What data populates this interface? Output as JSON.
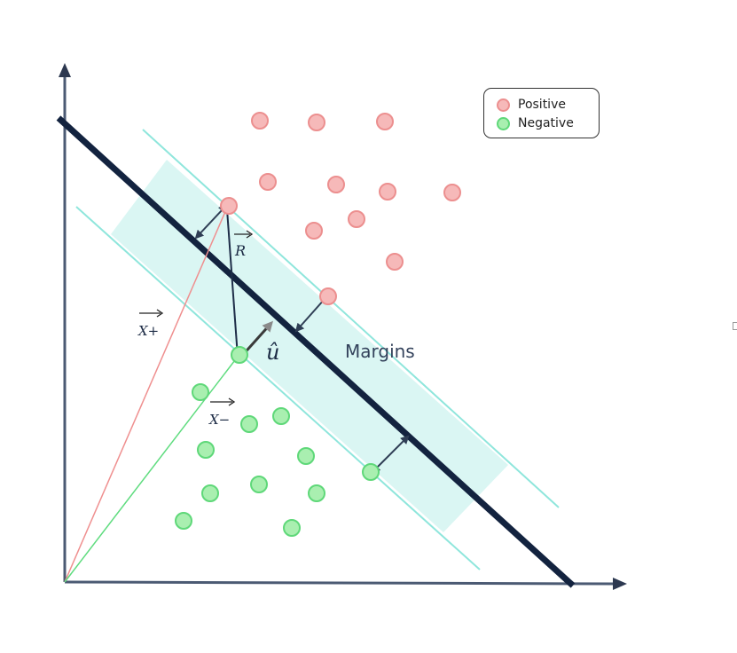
{
  "legend": {
    "positive_label": "Positive",
    "negative_label": "Negative"
  },
  "labels": {
    "r_vector": "R",
    "x_plus": "X+",
    "x_minus": "X−",
    "u_hat": "û",
    "margins": "Margins"
  },
  "colors": {
    "positive_fill": "#f6b9b9",
    "positive_stroke": "#ec8f8f",
    "negative_fill": "#a9efb0",
    "negative_stroke": "#5fd879",
    "margin_band": "#d8f6f2",
    "margin_line": "#8fe6dc",
    "hyperplane": "#13233f",
    "axis": "#4b5a73",
    "x_plus_vector": "#ef8f8f",
    "x_minus_vector": "#5fdc7f",
    "arrow": "#2f3e55"
  }
}
